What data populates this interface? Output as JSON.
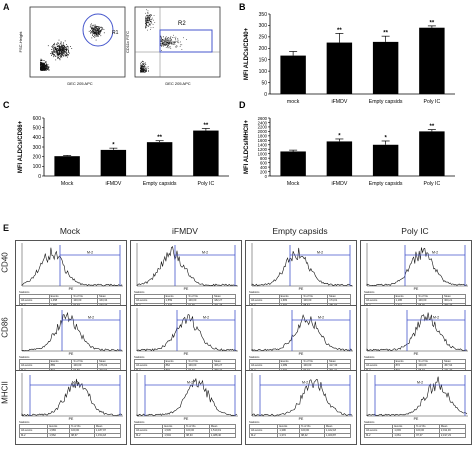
{
  "panels": {
    "A": {
      "letter": "A",
      "left": {
        "ylabel": "FSC-Height",
        "xlabel": "DEC 205 APC",
        "gate": "R1"
      },
      "right": {
        "ylabel": "CD11c FITC",
        "xlabel": "DEC 205 APC",
        "gate": "R2"
      }
    }
  },
  "chart_data": [
    {
      "panel": "B",
      "type": "bar",
      "ylabel": "MFI ALDCs/CD40+",
      "categories": [
        "mock",
        "iFMDV",
        "Empty capsids",
        "Poly IC"
      ],
      "values": [
        168,
        225,
        228,
        290
      ],
      "errors": [
        18,
        40,
        25,
        8
      ],
      "significance": [
        "",
        "**",
        "**",
        "**"
      ],
      "ylim": [
        0,
        350
      ],
      "yticks": [
        0,
        50,
        100,
        150,
        200,
        250,
        300,
        350
      ]
    },
    {
      "panel": "C",
      "type": "bar",
      "ylabel": "MFI ALDCs/CD86+",
      "categories": [
        "Mock",
        "iFMDV",
        "Empty capsids",
        "Poly IC"
      ],
      "values": [
        205,
        270,
        350,
        470
      ],
      "errors": [
        8,
        18,
        15,
        22
      ],
      "significance": [
        "",
        "*",
        "**",
        "**"
      ],
      "ylim": [
        0,
        600
      ],
      "yticks": [
        0,
        100,
        200,
        300,
        400,
        500,
        600
      ]
    },
    {
      "panel": "D",
      "type": "bar",
      "ylabel": "MFI ALDCs/MHCII+",
      "categories": [
        "Mock",
        "iFMDV",
        "Empty capsids",
        "Poly IC"
      ],
      "values": [
        1100,
        1550,
        1400,
        2000
      ],
      "errors": [
        60,
        110,
        170,
        80
      ],
      "significance": [
        "",
        "*",
        "*",
        "**"
      ],
      "ylim": [
        0,
        2600
      ],
      "yticks": [
        0,
        200,
        400,
        600,
        800,
        1000,
        1200,
        1400,
        1600,
        1800,
        2000,
        2200,
        2400,
        2600
      ]
    }
  ],
  "panel_E": {
    "letter": "E",
    "columns": [
      "Mock",
      "iFMDV",
      "Empty capsids",
      "Poly IC"
    ],
    "rows": [
      "CD40",
      "CD86",
      "MHCII"
    ],
    "gate": "M-2",
    "xlabel": "PE",
    "stats_title": "Statistics",
    "stats_header": [
      "",
      "Events",
      "% of Vis",
      "Mean"
    ],
    "stats": [
      [
        [
          [
            "All events",
            "1,458",
            "100,00",
            "163,34"
          ],
          [
            "M-2",
            "1,350",
            "90,97",
            "163,27"
          ]
        ],
        [
          [
            "All events",
            "1,559",
            "100,00",
            "182,27"
          ],
          [
            "M-2",
            "1,433",
            "91,90",
            "201,26"
          ]
        ],
        [
          [
            "All events",
            "1,683",
            "100,00",
            "174,01"
          ],
          [
            "M-2",
            "1,492",
            "88,67",
            "281,92"
          ]
        ],
        [
          [
            "All events",
            "1,186",
            "100,00",
            "300,21"
          ],
          [
            "M-2",
            "1,011",
            "95,00",
            "356,49"
          ]
        ]
      ],
      [
        [
          [
            "All events",
            "889",
            "100,00",
            "176,91"
          ],
          [
            "M-2",
            "842",
            "94,69",
            "200,94"
          ]
        ],
        [
          [
            "All events",
            "862",
            "100,00",
            "306,27"
          ],
          [
            "M-2",
            "802",
            "92,97",
            "359,42"
          ]
        ],
        [
          [
            "All events",
            "1,089",
            "100,00",
            "417,30"
          ],
          [
            "M-2",
            "1,002",
            "90,24",
            "391,31"
          ]
        ],
        [
          [
            "All events",
            "872",
            "100,00",
            "457,94"
          ],
          [
            "M-2",
            "831",
            "95,37",
            "441,40"
          ]
        ]
      ],
      [
        [
          [
            "All events",
            "1,583",
            "100,00",
            "1,187,97"
          ],
          [
            "M-2",
            "1,562",
            "98,67",
            "1,154,18"
          ]
        ],
        [
          [
            "All events",
            "1,545",
            "100,00",
            "1,510,19"
          ],
          [
            "M-2",
            "1,504",
            "98,33",
            "1,488,40"
          ]
        ],
        [
          [
            "All events",
            "1,396",
            "100,00",
            "1,422,18"
          ],
          [
            "M-2",
            "1,374",
            "98,42",
            "1,409,87"
          ]
        ],
        [
          [
            "All events",
            "1,093",
            "100,00",
            "2,011,30"
          ],
          [
            "M-2",
            "1,061",
            "97,07",
            "2,197,23"
          ]
        ]
      ]
    ]
  }
}
